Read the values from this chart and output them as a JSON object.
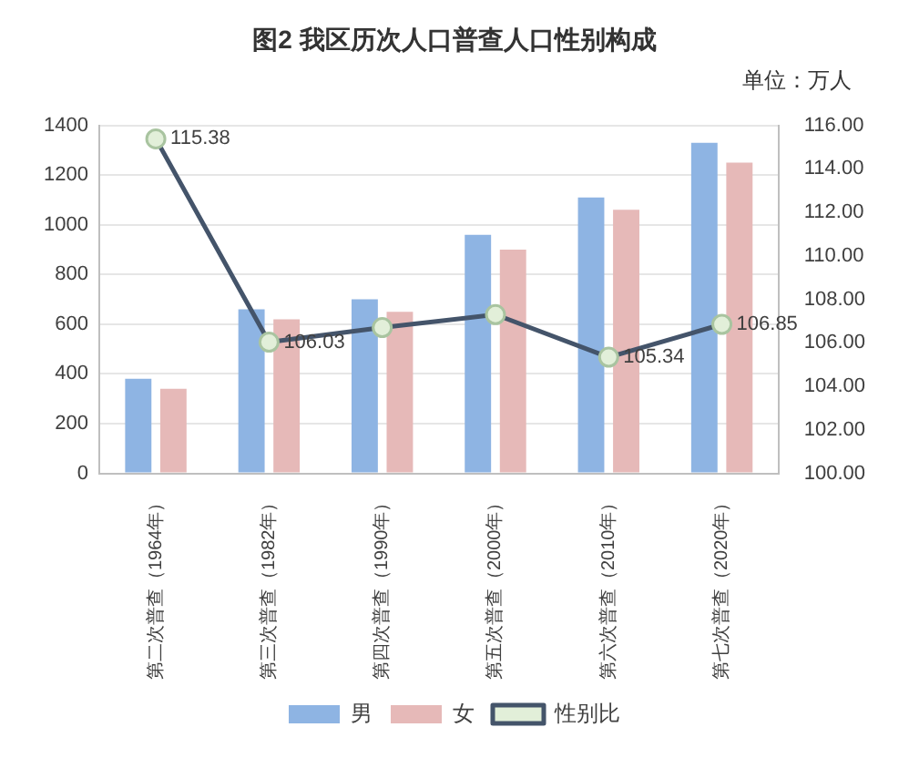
{
  "chart_data": {
    "type": "bar",
    "title": "图2 我区历次人口普查人口性别构成",
    "annotations": [
      "单位：万人"
    ],
    "categories": [
      "第二次普查（1964年）",
      "第三次普查（1982年）",
      "第四次普查（1990年）",
      "第五次普查（2000年）",
      "第六次普查（2010年）",
      "第七次普查（2020年）"
    ],
    "series": [
      {
        "name": "男",
        "color": "#8eb4e3",
        "values": [
          380,
          660,
          700,
          960,
          1110,
          1330
        ]
      },
      {
        "name": "女",
        "color": "#e6b9b8",
        "values": [
          340,
          620,
          650,
          900,
          1060,
          1250
        ]
      },
      {
        "name": "性别比",
        "type": "line",
        "axis": "y2",
        "color": "#44546a",
        "values": [
          115.38,
          106.03,
          106.7,
          107.3,
          105.34,
          106.85
        ],
        "value_labels": [
          "115.38",
          "106.03",
          null,
          null,
          "105.34",
          "106.85"
        ]
      }
    ],
    "ylim": [
      0,
      1400
    ],
    "yticks": [
      0,
      200,
      400,
      600,
      800,
      1000,
      1200,
      1400
    ],
    "y2lim": [
      100,
      116
    ],
    "y2ticks": [
      {
        "value": 100,
        "label": "100.00"
      },
      {
        "value": 102,
        "label": "102.00"
      },
      {
        "value": 104,
        "label": "104.00"
      },
      {
        "value": 106,
        "label": "106.00"
      },
      {
        "value": 108,
        "label": "108.00"
      },
      {
        "value": 110,
        "label": "110.00"
      },
      {
        "value": 112,
        "label": "112.00"
      },
      {
        "value": 114,
        "label": "114.00"
      },
      {
        "value": 116,
        "label": "116.00"
      }
    ],
    "grid": "y",
    "legend": "bottom",
    "marker": "circle"
  }
}
